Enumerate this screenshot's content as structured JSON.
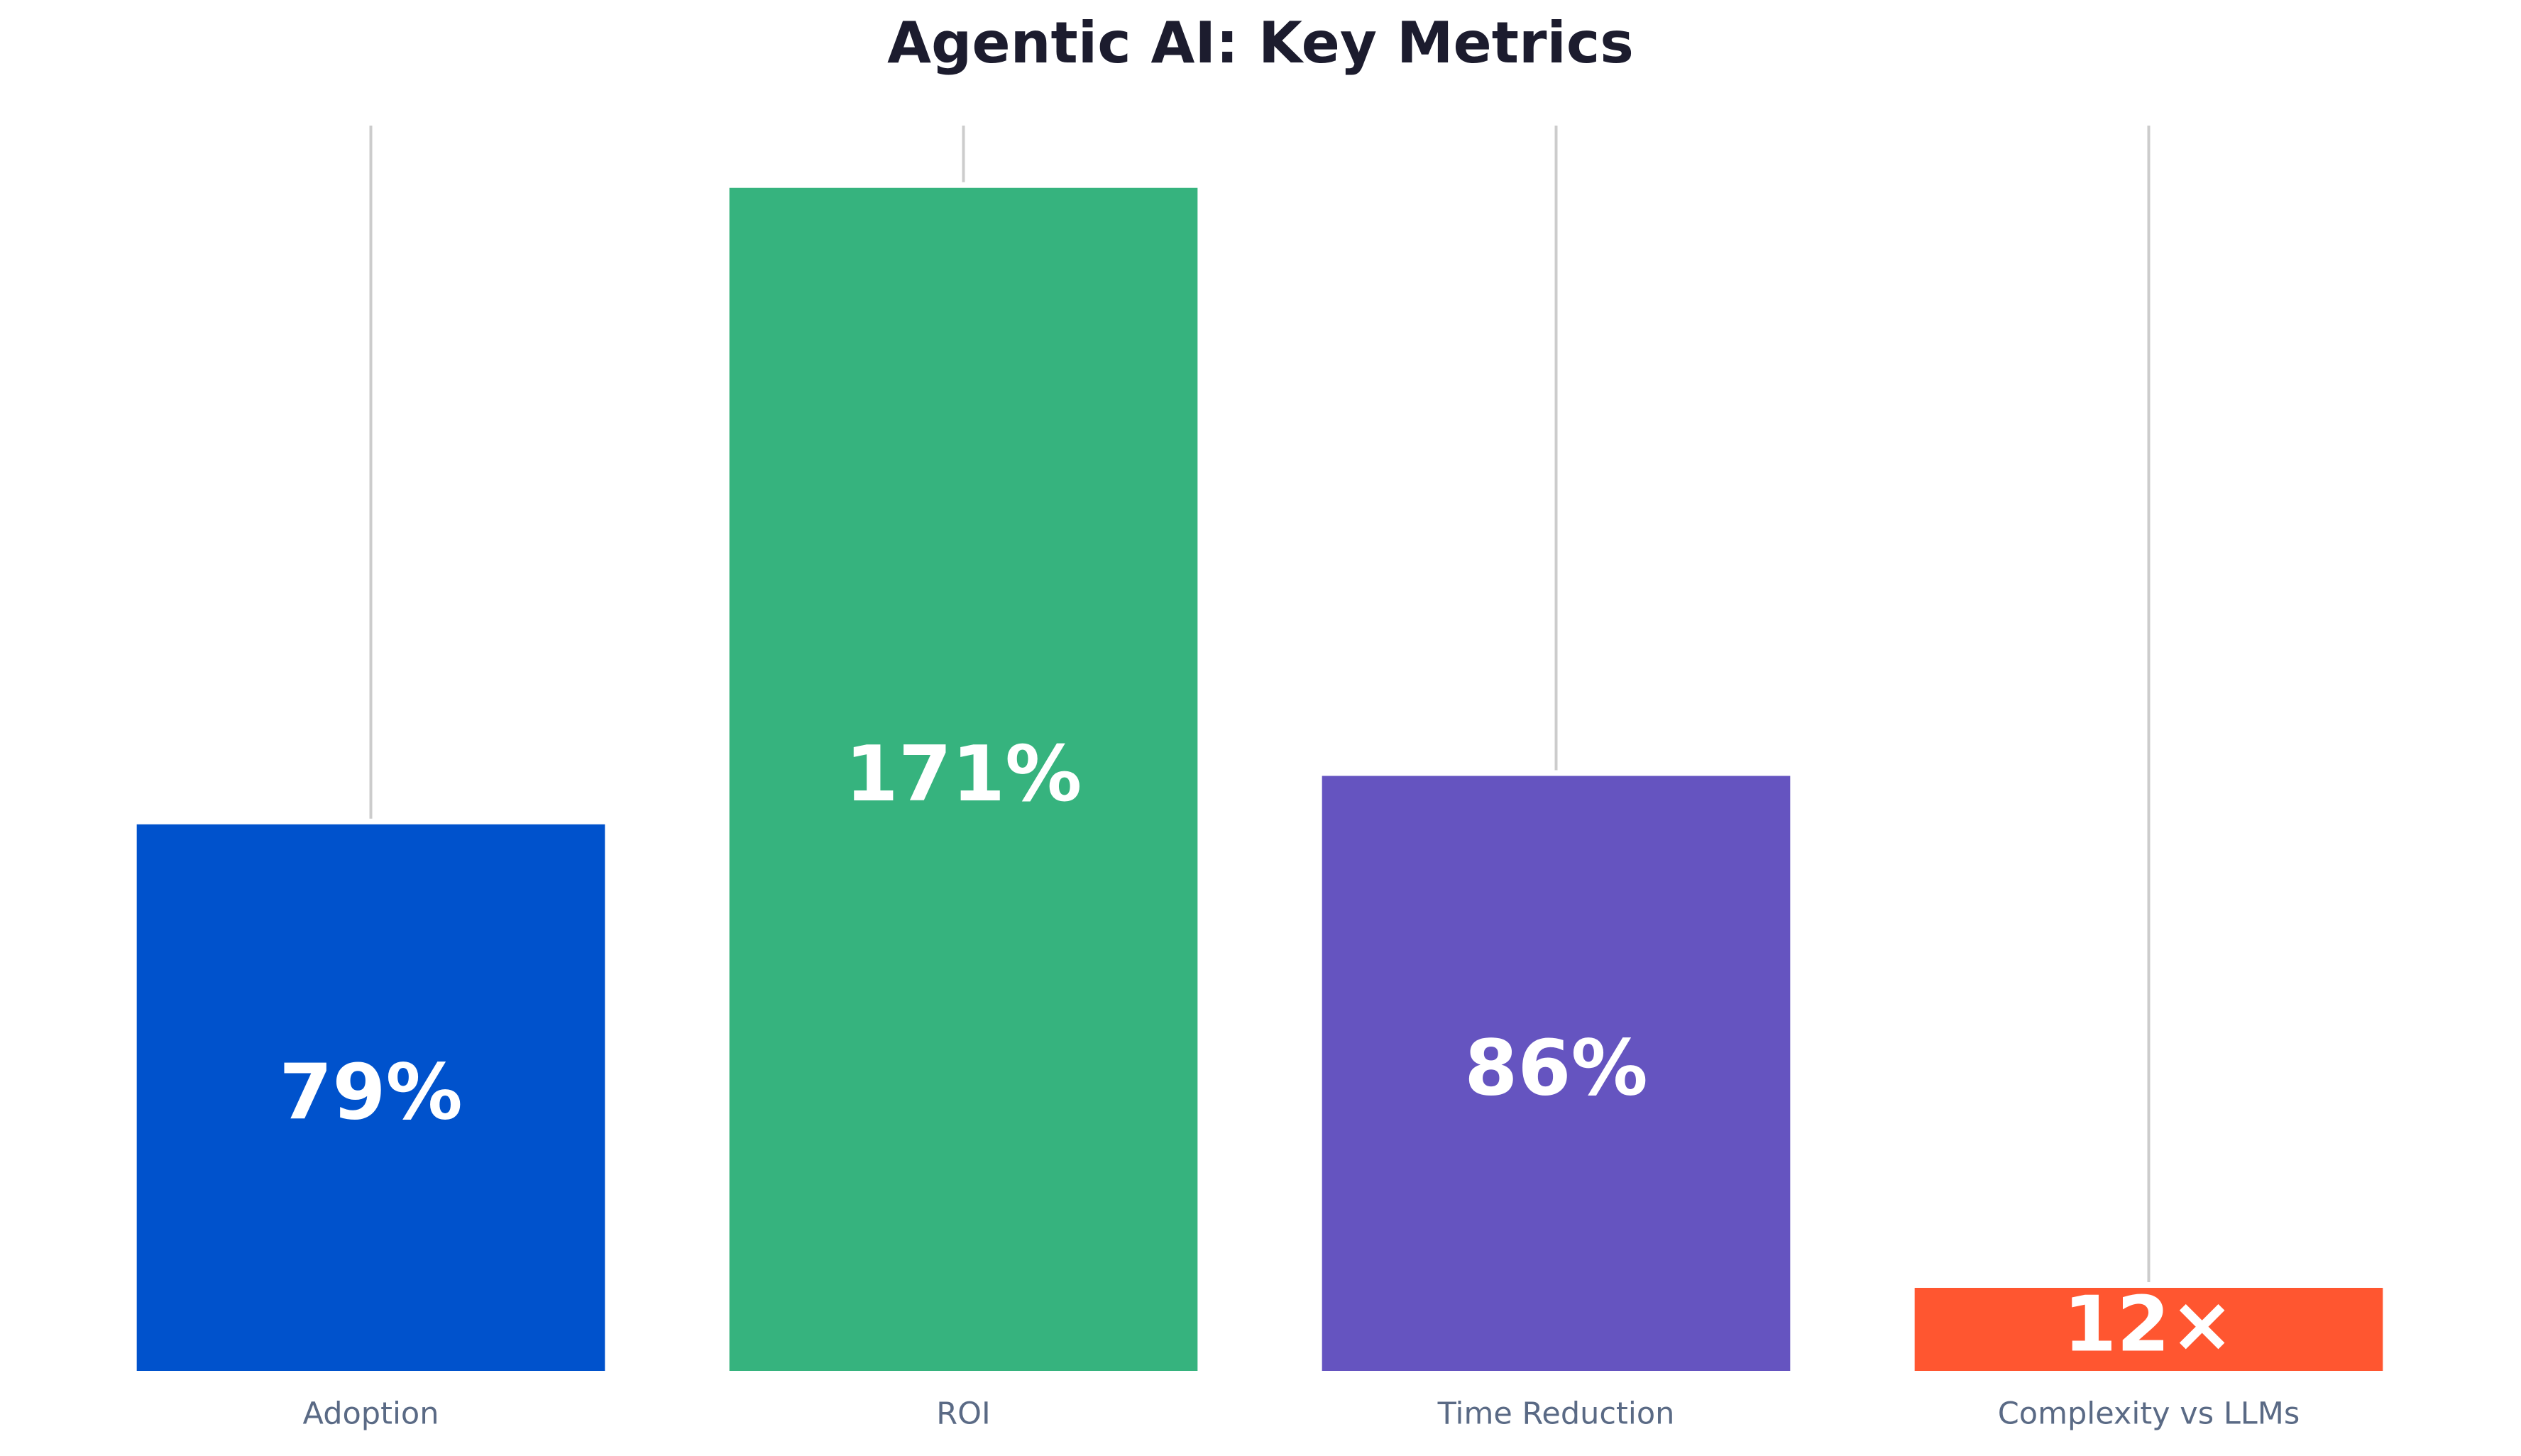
{
  "chart_data": {
    "type": "bar",
    "title": "Agentic AI: Key Metrics",
    "categories": [
      "Adoption",
      "ROI",
      "Time Reduction",
      "Complexity vs LLMs"
    ],
    "values": [
      79,
      171,
      86,
      12
    ],
    "value_labels": [
      "79%",
      "171%",
      "86%",
      "12×"
    ],
    "colors": [
      "#0052cc",
      "#36b37e",
      "#6554c0",
      "#ff5630"
    ],
    "ylim": [
      0,
      180
    ]
  }
}
